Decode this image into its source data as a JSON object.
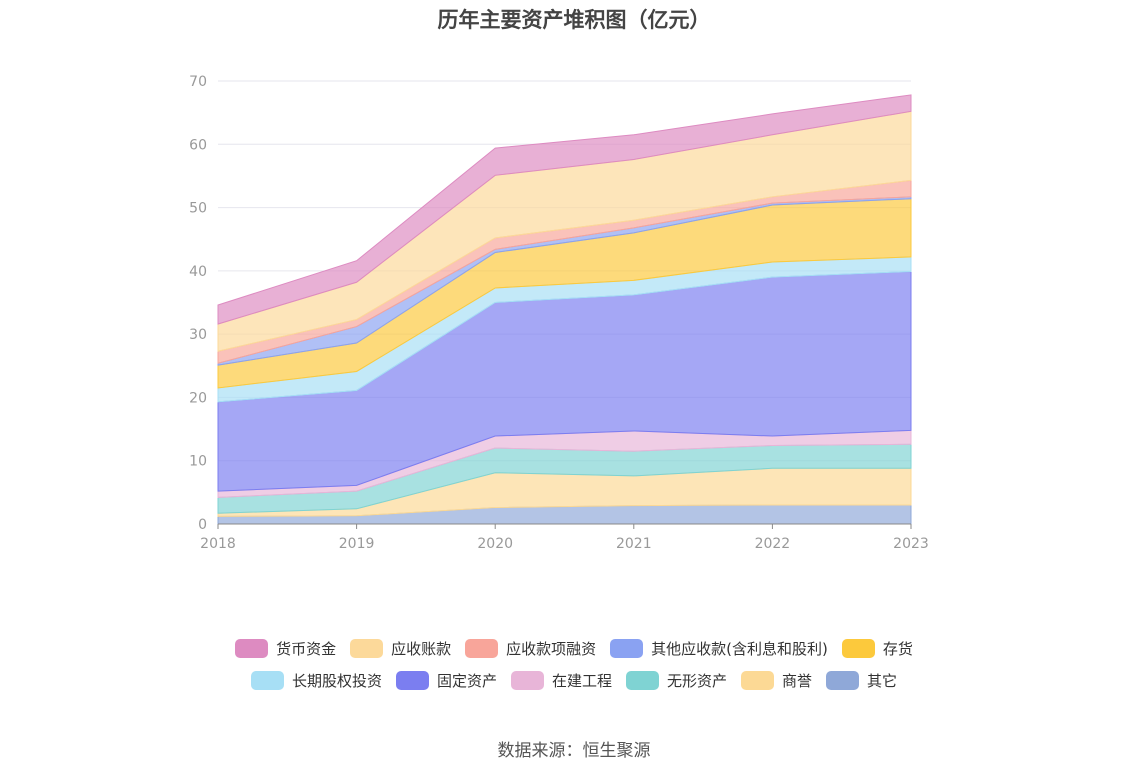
{
  "chart_data": {
    "type": "area",
    "stacked": true,
    "title": "历年主要资产堆积图（亿元）",
    "x": [
      "2018",
      "2019",
      "2020",
      "2021",
      "2022",
      "2023"
    ],
    "ylim": [
      0,
      70
    ],
    "yticks": [
      0,
      10,
      20,
      30,
      40,
      50,
      60,
      70
    ],
    "grid": true,
    "legend_position": "bottom",
    "series": [
      {
        "name": "其它",
        "color": "#8fa8d8",
        "values": [
          1.2,
          1.3,
          2.6,
          2.9,
          3.0,
          3.0
        ]
      },
      {
        "name": "商誉",
        "color": "#fcd995",
        "values": [
          0.5,
          1.1,
          5.5,
          4.7,
          5.8,
          5.8
        ]
      },
      {
        "name": "无形资产",
        "color": "#7fd3d3",
        "values": [
          2.5,
          2.8,
          3.9,
          3.9,
          3.6,
          3.8
        ]
      },
      {
        "name": "在建工程",
        "color": "#e8b5d8",
        "values": [
          1.0,
          0.9,
          1.9,
          3.2,
          1.5,
          2.2
        ]
      },
      {
        "name": "固定资产",
        "color": "#7b7ef0",
        "values": [
          14.1,
          15.0,
          21.1,
          21.5,
          25.1,
          25.1
        ]
      },
      {
        "name": "长期股权投资",
        "color": "#a7dff5",
        "values": [
          2.2,
          3.0,
          2.3,
          2.3,
          2.4,
          2.3
        ]
      },
      {
        "name": "存货",
        "color": "#fcc93c",
        "values": [
          3.6,
          4.5,
          5.6,
          7.5,
          9.0,
          9.2
        ]
      },
      {
        "name": "其他应收款(含利息和股利)",
        "color": "#8aa2f2",
        "values": [
          0.3,
          2.6,
          0.5,
          0.8,
          0.3,
          0.3
        ]
      },
      {
        "name": "应收款项融资",
        "color": "#f8a59a",
        "values": [
          1.9,
          1.1,
          1.8,
          1.2,
          1.0,
          2.6
        ]
      },
      {
        "name": "应收账款",
        "color": "#fcd99a",
        "values": [
          4.3,
          5.9,
          9.9,
          9.6,
          9.8,
          10.9
        ]
      },
      {
        "name": "货币资金",
        "color": "#dd8bc1",
        "values": [
          3.0,
          3.4,
          4.3,
          3.9,
          3.3,
          2.6
        ]
      }
    ],
    "legend_rows": [
      [
        "货币资金",
        "应收账款",
        "应收款项融资",
        "其他应收款(含利息和股利)",
        "存货"
      ],
      [
        "长期股权投资",
        "固定资产",
        "在建工程",
        "无形资产",
        "商誉",
        "其它"
      ]
    ]
  },
  "source": "数据来源：恒生聚源"
}
